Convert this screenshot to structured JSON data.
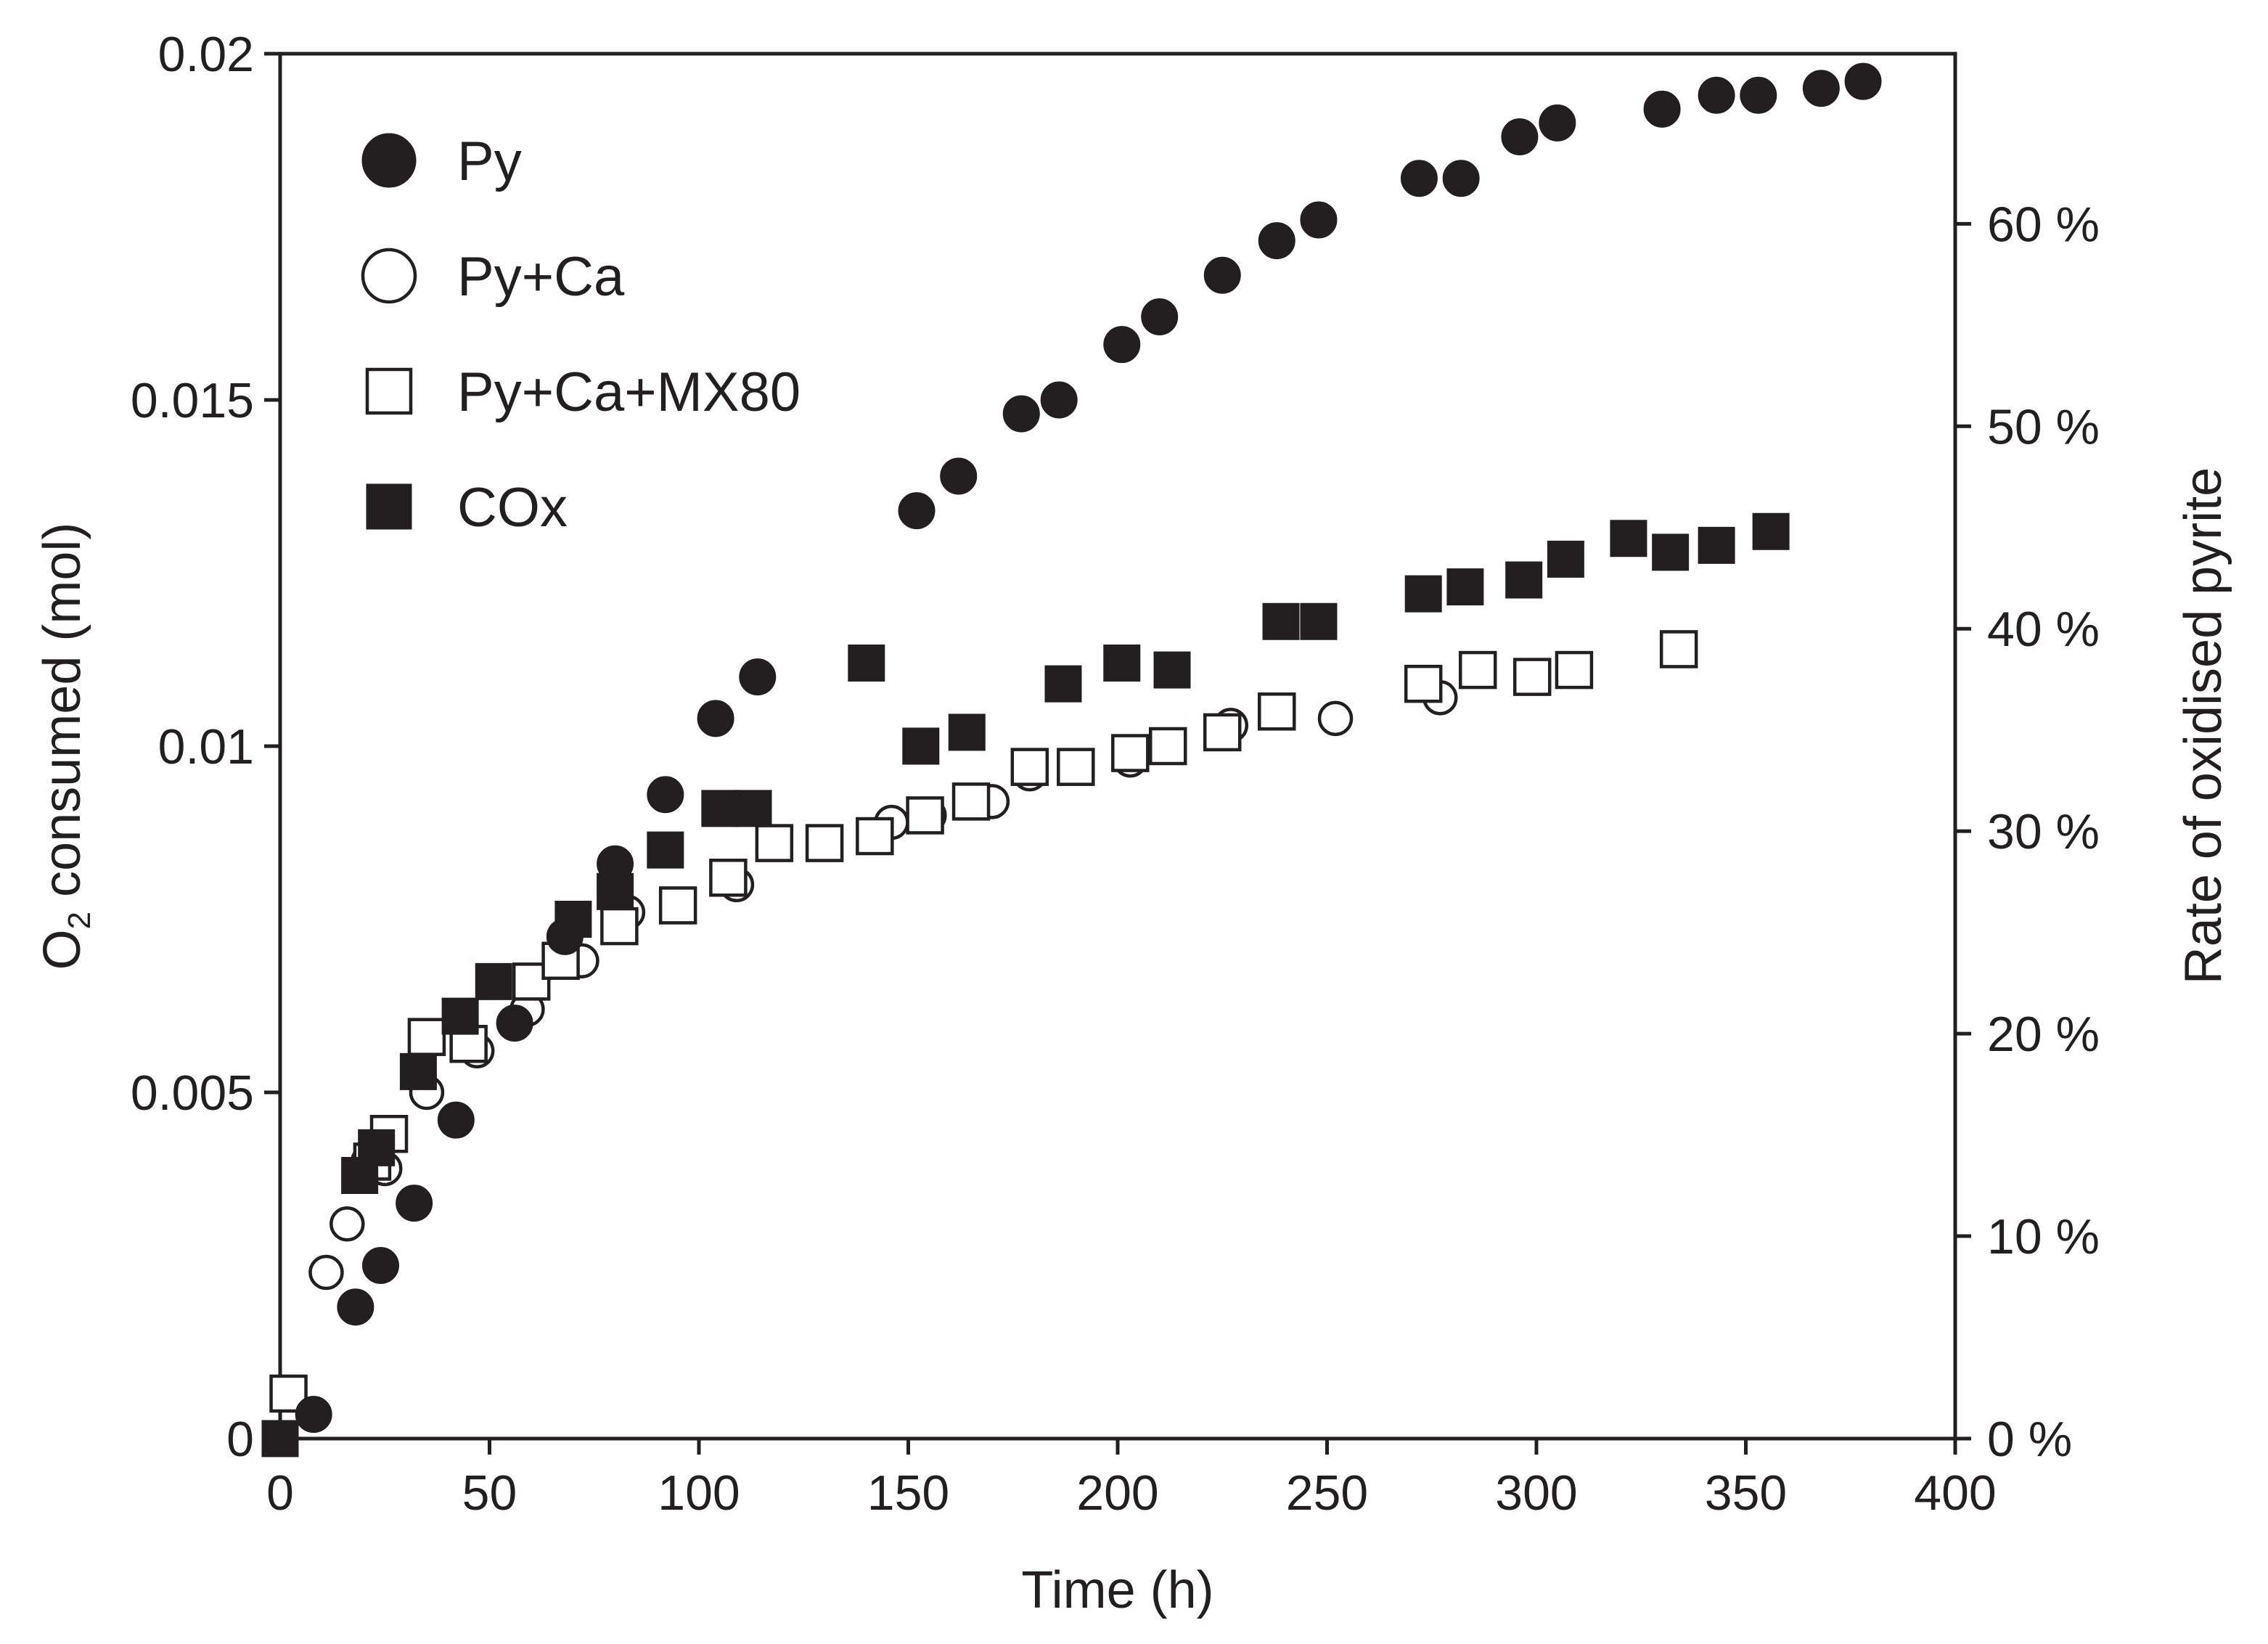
{
  "chart_data": {
    "type": "scatter",
    "title": "",
    "xlabel": "Time (h)",
    "ylabel": "O2 consumed (mol)",
    "ylabel_parts": {
      "prefix": "O",
      "subscript": "2",
      "suffix": " consumed (mol)"
    },
    "y2label": "Rate of oxidised pyrite",
    "xlim": [
      0,
      400
    ],
    "ylim": [
      0,
      0.02
    ],
    "y2lim": [
      0,
      0.684
    ],
    "x_ticks": [
      0,
      50,
      100,
      150,
      200,
      250,
      300,
      350,
      400
    ],
    "x_tick_labels": [
      "0",
      "50",
      "100",
      "150",
      "200",
      "250",
      "300",
      "350",
      "400"
    ],
    "y_ticks": [
      0,
      0.005,
      0.01,
      0.015,
      0.02
    ],
    "y_tick_labels": [
      "0",
      "0.005",
      "0.01",
      "0.015",
      "0.02"
    ],
    "y2_ticks": [
      0,
      0.1,
      0.2,
      0.3,
      0.4,
      0.5,
      0.6
    ],
    "y2_tick_labels": [
      "0 %",
      "10 %",
      "20 %",
      "30 %",
      "40 %",
      "50 %",
      "60 %"
    ],
    "grid": false,
    "legend_position": "top-left",
    "series": [
      {
        "name": "Py",
        "marker": "filled-circle",
        "points": [
          [
            0,
            0
          ],
          [
            8,
            0.00035
          ],
          [
            18,
            0.0019
          ],
          [
            24,
            0.0025
          ],
          [
            32,
            0.0034
          ],
          [
            42,
            0.0046
          ],
          [
            56,
            0.006
          ],
          [
            68,
            0.00725
          ],
          [
            80,
            0.0083
          ],
          [
            92,
            0.0093
          ],
          [
            104,
            0.0104
          ],
          [
            114,
            0.011
          ],
          [
            152,
            0.0134
          ],
          [
            162,
            0.0139
          ],
          [
            177,
            0.0148
          ],
          [
            186,
            0.015
          ],
          [
            201,
            0.0158
          ],
          [
            210,
            0.0162
          ],
          [
            225,
            0.0168
          ],
          [
            238,
            0.0173
          ],
          [
            248,
            0.0176
          ],
          [
            272,
            0.0182
          ],
          [
            282,
            0.0182
          ],
          [
            296,
            0.0188
          ],
          [
            305,
            0.019
          ],
          [
            330,
            0.0192
          ],
          [
            343,
            0.0194
          ],
          [
            353,
            0.0194
          ],
          [
            368,
            0.0195
          ],
          [
            378,
            0.0196
          ]
        ]
      },
      {
        "name": "Py+Ca",
        "marker": "open-circle",
        "points": [
          [
            0,
            0
          ],
          [
            11,
            0.0024
          ],
          [
            16,
            0.0031
          ],
          [
            21,
            0.004
          ],
          [
            25,
            0.0039
          ],
          [
            35,
            0.005
          ],
          [
            47,
            0.0056
          ],
          [
            59,
            0.0062
          ],
          [
            72,
            0.0069
          ],
          [
            83,
            0.0076
          ],
          [
            109,
            0.008
          ],
          [
            146,
            0.0089
          ],
          [
            155,
            0.009
          ],
          [
            170,
            0.0092
          ],
          [
            179,
            0.0096
          ],
          [
            203,
            0.0098
          ],
          [
            227,
            0.0103
          ],
          [
            252,
            0.0104
          ],
          [
            277,
            0.0107
          ]
        ]
      },
      {
        "name": "Py+Ca+MX80",
        "marker": "open-square",
        "points": [
          [
            2,
            0.00065
          ],
          [
            22,
            0.004
          ],
          [
            26,
            0.0044
          ],
          [
            35,
            0.0058
          ],
          [
            45,
            0.0057
          ],
          [
            60,
            0.0066
          ],
          [
            67,
            0.0069
          ],
          [
            81,
            0.0074
          ],
          [
            95,
            0.0077
          ],
          [
            107,
            0.0081
          ],
          [
            118,
            0.0086
          ],
          [
            130,
            0.0086
          ],
          [
            142,
            0.0087
          ],
          [
            154,
            0.009
          ],
          [
            165,
            0.0092
          ],
          [
            179,
            0.0097
          ],
          [
            190,
            0.0097
          ],
          [
            203,
            0.0099
          ],
          [
            212,
            0.01
          ],
          [
            225,
            0.0102
          ],
          [
            238,
            0.0105
          ],
          [
            273,
            0.0109
          ],
          [
            286,
            0.0111
          ],
          [
            299,
            0.011
          ],
          [
            309,
            0.0111
          ],
          [
            334,
            0.0114
          ]
        ]
      },
      {
        "name": "COx",
        "marker": "filled-square",
        "points": [
          [
            0,
            0
          ],
          [
            19,
            0.0038
          ],
          [
            23,
            0.0042
          ],
          [
            33,
            0.0053
          ],
          [
            43,
            0.0061
          ],
          [
            51,
            0.0066
          ],
          [
            70,
            0.0075
          ],
          [
            80,
            0.0079
          ],
          [
            92,
            0.0085
          ],
          [
            105,
            0.0091
          ],
          [
            113,
            0.0091
          ],
          [
            140,
            0.0112
          ],
          [
            153,
            0.01
          ],
          [
            164,
            0.0102
          ],
          [
            187,
            0.0109
          ],
          [
            201,
            0.0112
          ],
          [
            213,
            0.0111
          ],
          [
            239,
            0.0118
          ],
          [
            248,
            0.0118
          ],
          [
            273,
            0.0122
          ],
          [
            283,
            0.0123
          ],
          [
            297,
            0.0124
          ],
          [
            307,
            0.0127
          ],
          [
            322,
            0.013
          ],
          [
            332,
            0.0128
          ],
          [
            343,
            0.0129
          ],
          [
            356,
            0.0131
          ]
        ]
      }
    ]
  }
}
